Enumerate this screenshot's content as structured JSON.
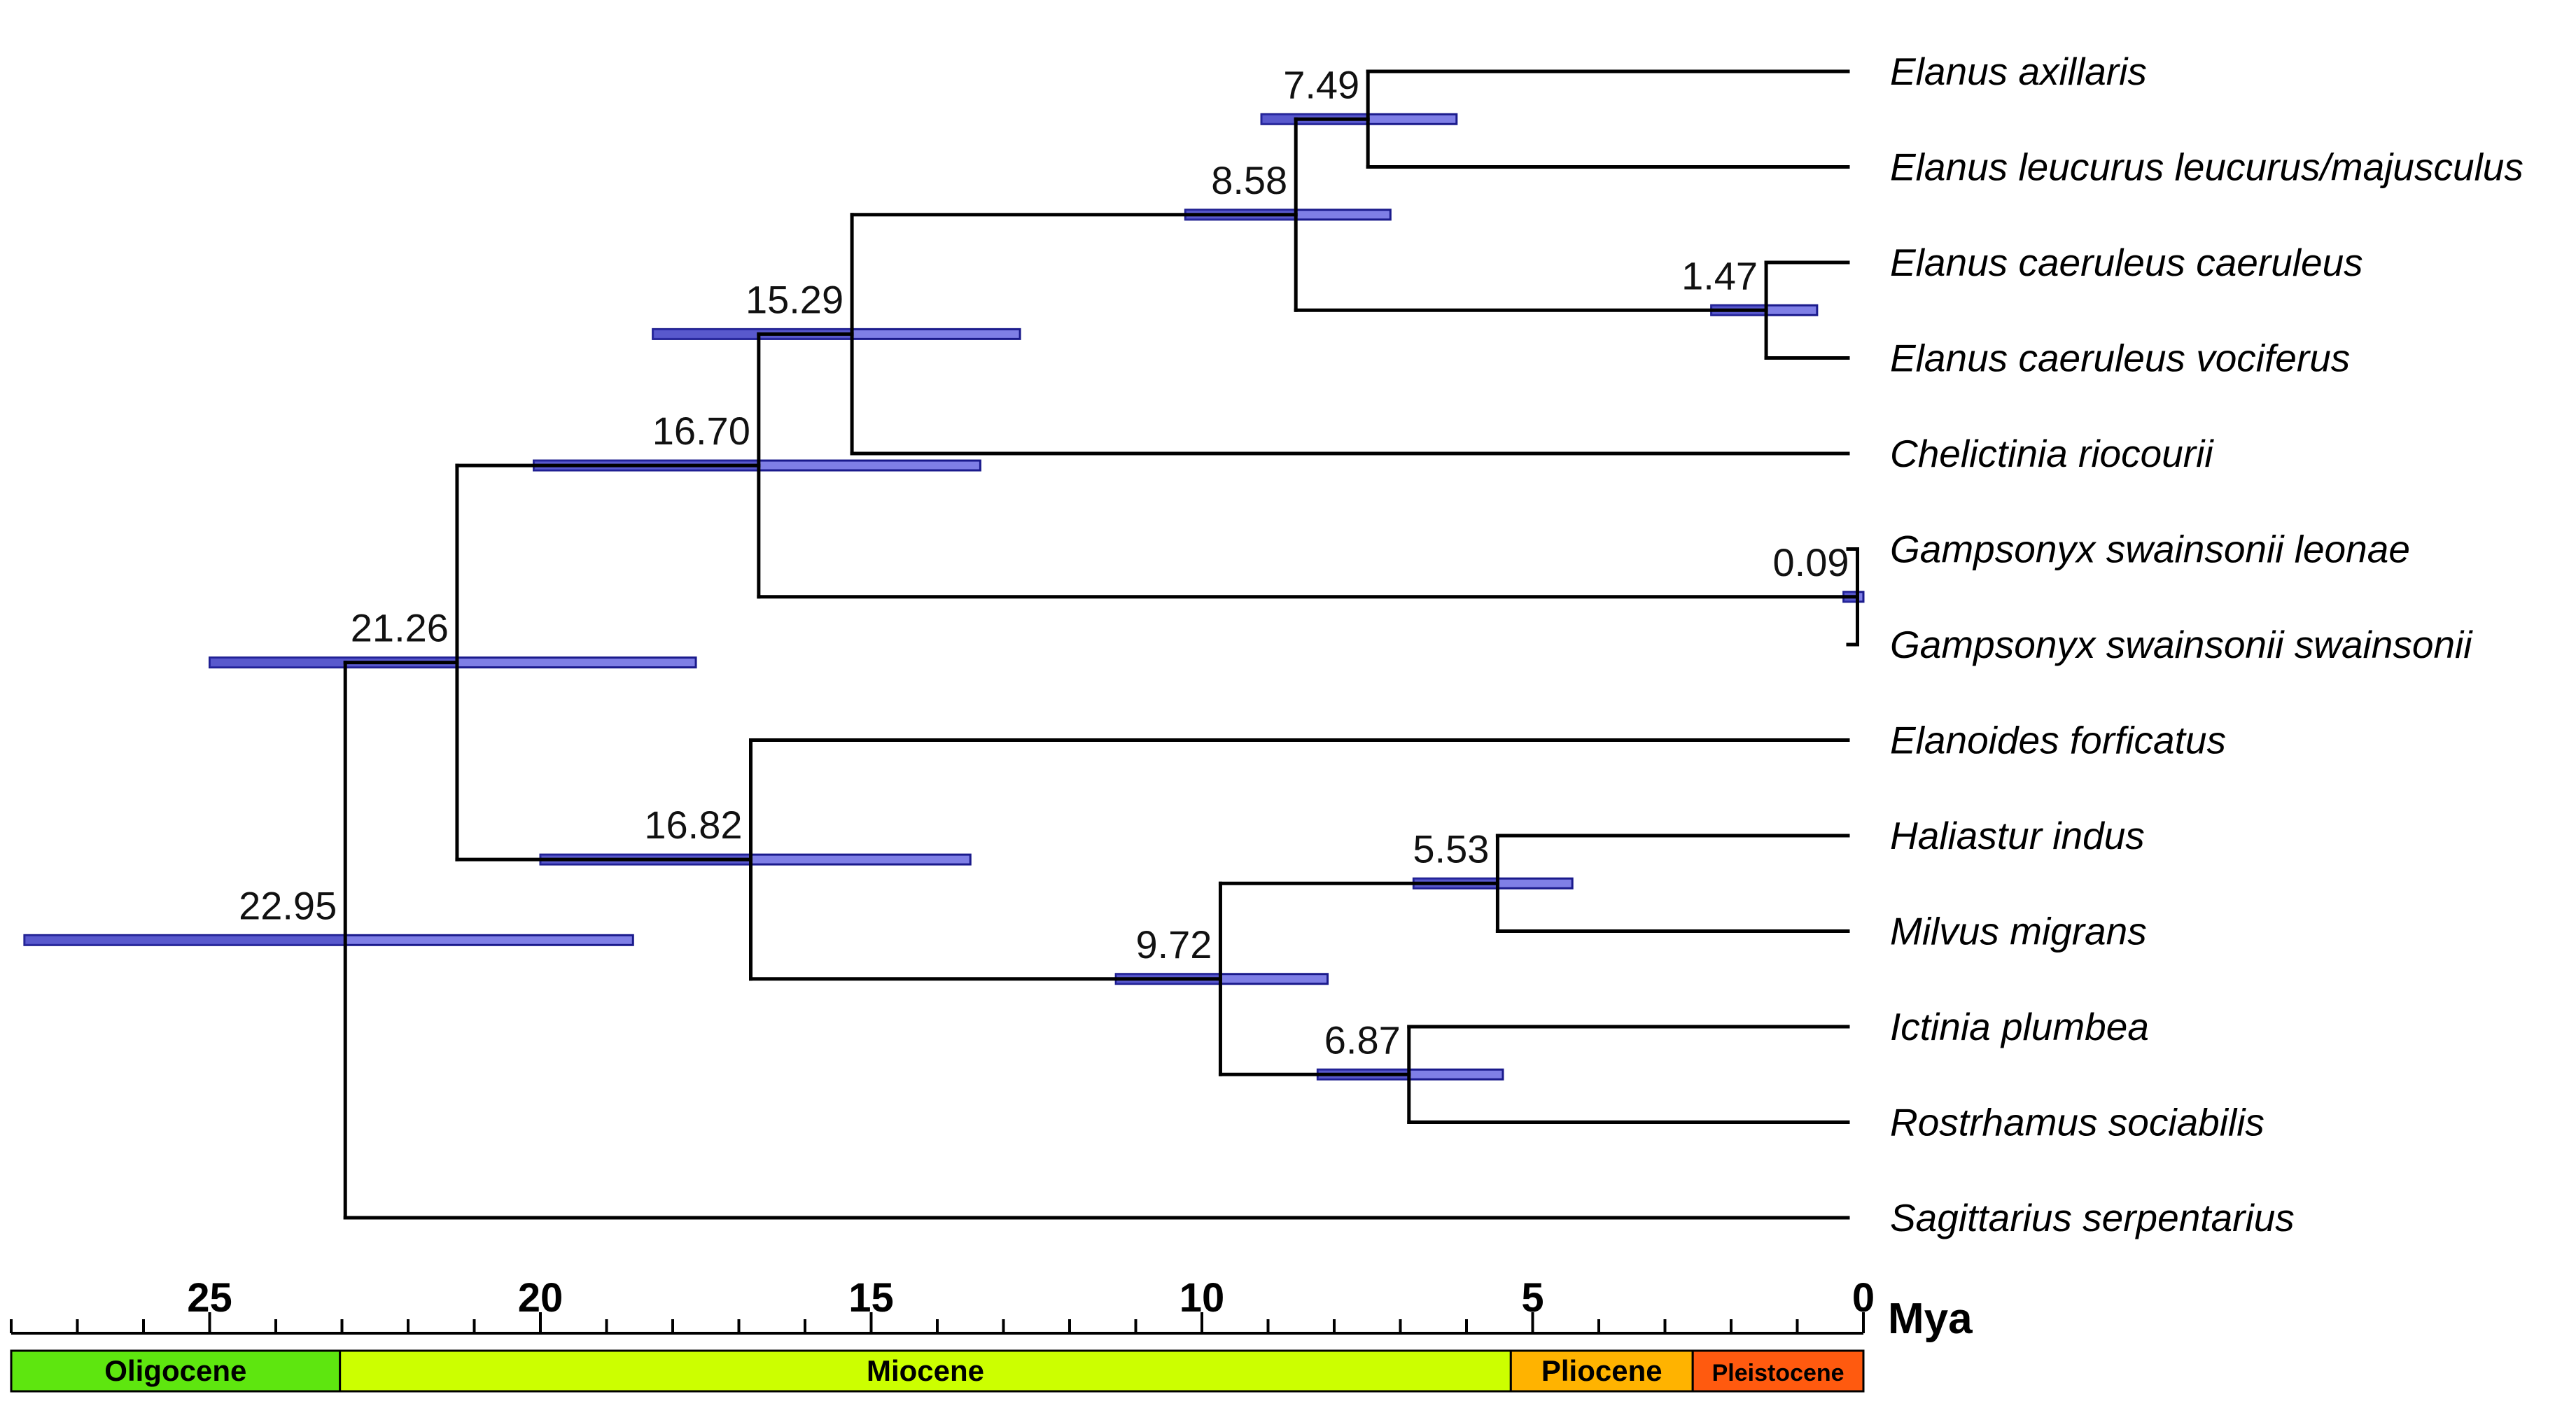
{
  "axis": {
    "unit_label": "Mya",
    "ticks": [
      {
        "value": 25,
        "label": "25"
      },
      {
        "value": 20,
        "label": "20"
      },
      {
        "value": 15,
        "label": "15"
      },
      {
        "value": 10,
        "label": "10"
      },
      {
        "value": 5,
        "label": "5"
      },
      {
        "value": 0,
        "label": "0"
      }
    ],
    "range_mya": [
      28,
      0
    ]
  },
  "epochs": [
    {
      "name": "Oligocene",
      "start_mya": 28.0,
      "end_mya": 23.03,
      "color": "#5ee60f"
    },
    {
      "name": "Miocene",
      "start_mya": 23.03,
      "end_mya": 5.33,
      "color": "#ccff00"
    },
    {
      "name": "Pliocene",
      "start_mya": 5.33,
      "end_mya": 2.58,
      "color": "#ffb300"
    },
    {
      "name": "Pleistocene",
      "start_mya": 2.58,
      "end_mya": 0.0,
      "color": "#ff5a0f"
    }
  ],
  "colors": {
    "branch": "#000000",
    "ci_bar_fill": "#7f7fe6",
    "ci_bar_stroke": "#1a1a8c"
  },
  "taxa": [
    {
      "id": "t1",
      "name": "Elanus axillaris"
    },
    {
      "id": "t2",
      "name": "Elanus leucurus leucurus/majusculus"
    },
    {
      "id": "t3",
      "name": "Elanus caeruleus caeruleus"
    },
    {
      "id": "t4",
      "name": "Elanus caeruleus vociferus"
    },
    {
      "id": "t5",
      "name": "Chelictinia riocourii"
    },
    {
      "id": "t6",
      "name": "Gampsonyx swainsonii leonae"
    },
    {
      "id": "t7",
      "name": "Gampsonyx swainsonii swainsonii"
    },
    {
      "id": "t8",
      "name": "Elanoides forficatus"
    },
    {
      "id": "t9",
      "name": "Haliastur indus"
    },
    {
      "id": "t10",
      "name": "Milvus migrans"
    },
    {
      "id": "t11",
      "name": "Ictinia plumbea"
    },
    {
      "id": "t12",
      "name": "Rostrhamus sociabilis"
    },
    {
      "id": "t13",
      "name": "Sagittarius serpentarius"
    }
  ],
  "nodes": [
    {
      "id": "n7.49",
      "age": 7.49,
      "label": "7.49",
      "ci": [
        9.1,
        6.15
      ],
      "children": [
        "t1",
        "t2"
      ]
    },
    {
      "id": "n1.47",
      "age": 1.47,
      "label": "1.47",
      "ci": [
        2.3,
        0.7
      ],
      "children": [
        "t3",
        "t4"
      ]
    },
    {
      "id": "n8.58",
      "age": 8.58,
      "label": "8.58",
      "ci": [
        10.25,
        7.15
      ],
      "children": [
        "n7.49",
        "n1.47"
      ]
    },
    {
      "id": "n15.29",
      "age": 15.29,
      "label": "15.29",
      "ci": [
        18.3,
        12.75
      ],
      "children": [
        "n8.58",
        "t5"
      ]
    },
    {
      "id": "n0.09",
      "age": 0.09,
      "label": "0.09",
      "ci": [
        0.3,
        0.0
      ],
      "children": [
        "t6",
        "t7"
      ]
    },
    {
      "id": "n16.70",
      "age": 16.7,
      "label": "16.70",
      "ci": [
        20.1,
        13.35
      ],
      "children": [
        "n15.29",
        "n0.09"
      ]
    },
    {
      "id": "n5.53",
      "age": 5.53,
      "label": "5.53",
      "ci": [
        6.8,
        4.4
      ],
      "children": [
        "t9",
        "t10"
      ]
    },
    {
      "id": "n6.87",
      "age": 6.87,
      "label": "6.87",
      "ci": [
        8.25,
        5.45
      ],
      "children": [
        "t11",
        "t12"
      ]
    },
    {
      "id": "n9.72",
      "age": 9.72,
      "label": "9.72",
      "ci": [
        11.3,
        8.1
      ],
      "children": [
        "n5.53",
        "n6.87"
      ]
    },
    {
      "id": "n16.82",
      "age": 16.82,
      "label": "16.82",
      "ci": [
        20.0,
        13.5
      ],
      "children": [
        "t8",
        "n9.72"
      ]
    },
    {
      "id": "n21.26",
      "age": 21.26,
      "label": "21.26",
      "ci": [
        25.0,
        17.65
      ],
      "children": [
        "n16.70",
        "n16.82"
      ]
    },
    {
      "id": "n22.95",
      "age": 22.95,
      "label": "22.95",
      "ci": [
        27.8,
        18.6
      ],
      "children": [
        "n21.26",
        "t13"
      ]
    }
  ],
  "root": "n22.95"
}
